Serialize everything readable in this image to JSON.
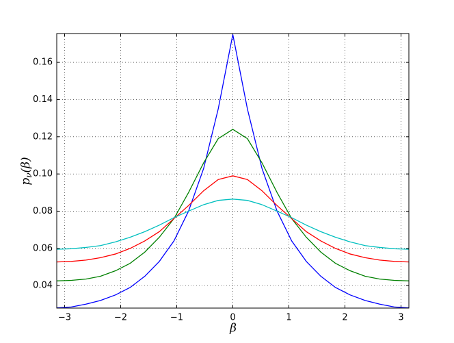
{
  "chart_data": {
    "type": "line",
    "xlabel": "β",
    "ylabel": [
      "p",
      "ν",
      "(β)"
    ],
    "x": [
      -3.14,
      -2.88,
      -2.62,
      -2.36,
      -2.09,
      -1.83,
      -1.57,
      -1.31,
      -1.05,
      -0.79,
      -0.52,
      -0.26,
      0,
      0.26,
      0.52,
      0.79,
      1.05,
      1.31,
      1.57,
      1.83,
      2.09,
      2.36,
      2.62,
      2.88,
      3.14
    ],
    "series": [
      {
        "color": "#0000ff",
        "values": [
          0.028,
          0.0285,
          0.03,
          0.032,
          0.035,
          0.039,
          0.045,
          0.053,
          0.064,
          0.08,
          0.103,
          0.135,
          0.175,
          0.135,
          0.103,
          0.08,
          0.064,
          0.053,
          0.045,
          0.039,
          0.035,
          0.032,
          0.03,
          0.0285,
          0.028
        ]
      },
      {
        "color": "#008000",
        "values": [
          0.0425,
          0.0428,
          0.0435,
          0.045,
          0.048,
          0.052,
          0.058,
          0.066,
          0.076,
          0.09,
          0.106,
          0.119,
          0.124,
          0.119,
          0.106,
          0.09,
          0.076,
          0.066,
          0.058,
          0.052,
          0.048,
          0.045,
          0.0435,
          0.0428,
          0.0425
        ]
      },
      {
        "color": "#ff0000",
        "values": [
          0.0527,
          0.053,
          0.0537,
          0.055,
          0.057,
          0.06,
          0.064,
          0.069,
          0.076,
          0.083,
          0.091,
          0.097,
          0.099,
          0.097,
          0.091,
          0.083,
          0.076,
          0.069,
          0.064,
          0.06,
          0.057,
          0.055,
          0.0537,
          0.053,
          0.0527
        ]
      },
      {
        "color": "#00bfbf",
        "values": [
          0.0595,
          0.0598,
          0.0605,
          0.0615,
          0.0635,
          0.066,
          0.069,
          0.0725,
          0.0765,
          0.08,
          0.0835,
          0.0858,
          0.0865,
          0.0858,
          0.0835,
          0.08,
          0.0765,
          0.0725,
          0.069,
          0.066,
          0.0635,
          0.0615,
          0.0605,
          0.0598,
          0.0595
        ]
      }
    ],
    "xlim": [
      -3.14,
      3.14
    ],
    "ylim": [
      0.0279,
      0.1755
    ],
    "xticks": [
      {
        "value": -3,
        "label": "−3"
      },
      {
        "value": -2,
        "label": "−2"
      },
      {
        "value": -1,
        "label": "−1"
      },
      0,
      1,
      2,
      3
    ],
    "yticks": [
      0.04,
      0.06,
      0.08,
      {
        "value": 0.1,
        "label": "0.10"
      },
      0.12,
      0.14,
      0.16
    ],
    "grid": true
  }
}
